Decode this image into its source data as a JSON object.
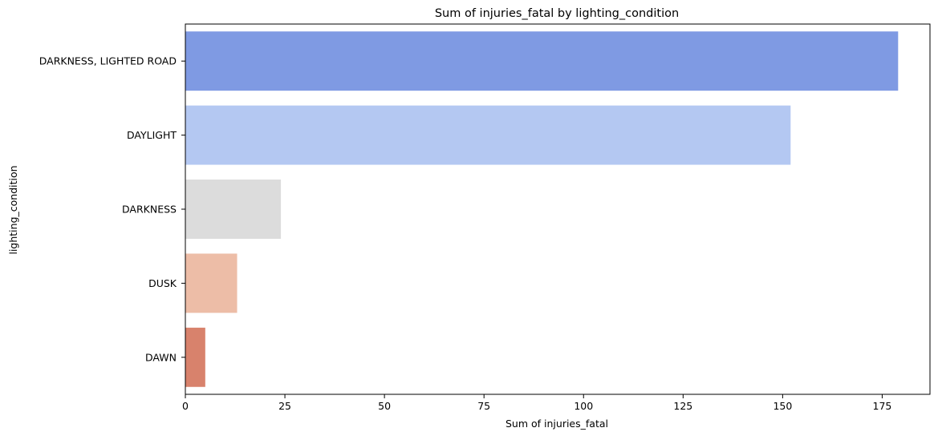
{
  "chart_data": {
    "type": "bar",
    "orientation": "horizontal",
    "title": "Sum of injuries_fatal by lighting_condition",
    "xlabel": "Sum of injuries_fatal",
    "ylabel": "lighting_condition",
    "categories": [
      "DARKNESS, LIGHTED ROAD",
      "DAYLIGHT",
      "DARKNESS",
      "DUSK",
      "DAWN"
    ],
    "values": [
      179,
      152,
      24,
      13,
      5
    ],
    "colors": [
      "#7f9ae3",
      "#b4c8f2",
      "#dcdcdc",
      "#edbda7",
      "#d8826c"
    ],
    "xlim": [
      0,
      187
    ],
    "xticks": [
      0,
      25,
      50,
      75,
      100,
      125,
      150,
      175
    ],
    "grid": false,
    "legend": "none"
  }
}
